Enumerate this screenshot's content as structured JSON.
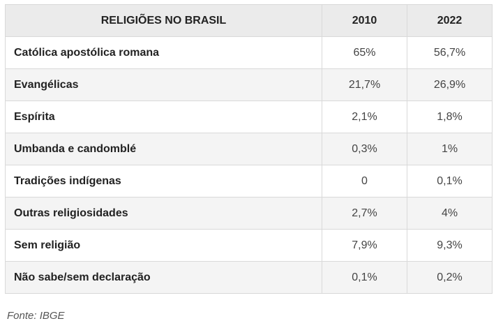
{
  "table": {
    "headers": [
      "RELIGIÕES NO BRASIL",
      "2010",
      "2022"
    ],
    "rows": [
      {
        "label": "Católica apostólica romana",
        "y2010": "65%",
        "y2022": "56,7%"
      },
      {
        "label": "Evangélicas",
        "y2010": "21,7%",
        "y2022": "26,9%"
      },
      {
        "label": "Espírita",
        "y2010": "2,1%",
        "y2022": "1,8%"
      },
      {
        "label": "Umbanda e candomblé",
        "y2010": "0,3%",
        "y2022": "1%"
      },
      {
        "label": "Tradições indígenas",
        "y2010": "0",
        "y2022": "0,1%"
      },
      {
        "label": "Outras religiosidades",
        "y2010": "2,7%",
        "y2022": "4%"
      },
      {
        "label": "Sem religião",
        "y2010": "7,9%",
        "y2022": "9,3%"
      },
      {
        "label": "Não sabe/sem declaração",
        "y2010": "0,1%",
        "y2022": "0,2%"
      }
    ]
  },
  "source": "Fonte: IBGE"
}
